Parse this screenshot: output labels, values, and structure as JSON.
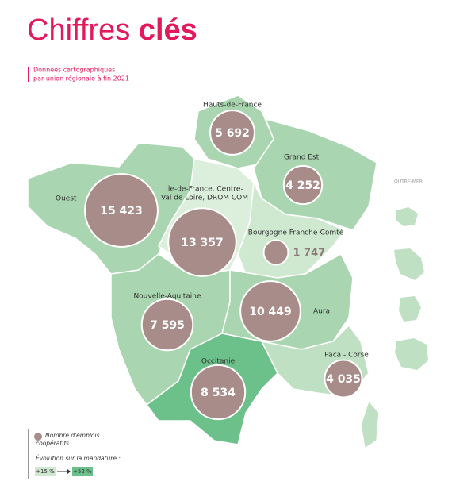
{
  "title": {
    "regular": "Chiffres",
    "bold": "clés"
  },
  "subtitle": [
    "Données cartographiques",
    "par union régionale à fin 2021"
  ],
  "overseas_label": "OUTRE-MER",
  "bubble_color": "#a78c89",
  "regions": [
    {
      "name": [
        "Hauts-de-France"
      ],
      "value": 5692,
      "value_label": "5 692",
      "color": "#a9d6b0"
    },
    {
      "name": [
        "Grand Est"
      ],
      "value": 4252,
      "value_label": "4 252",
      "color": "#a9d6b0"
    },
    {
      "name": [
        "Ouest"
      ],
      "value": 15423,
      "value_label": "15 423",
      "color": "#a9d6b0"
    },
    {
      "name": [
        "Ile-de-France, Centre-",
        "Val de Loire, DROM COM"
      ],
      "value": 13357,
      "value_label": "13 357",
      "color": "#dcefdc"
    },
    {
      "name": [
        "Bourgogne Franche-Comté"
      ],
      "value": 1747,
      "value_label": "1 747",
      "color": "#cfe8d0"
    },
    {
      "name": [
        "Nouvelle-Aquitaine"
      ],
      "value": 7595,
      "value_label": "7 595",
      "color": "#a9d6b0"
    },
    {
      "name": [
        "Aura"
      ],
      "value": 10449,
      "value_label": "10 449",
      "color": "#a9d6b0"
    },
    {
      "name": [
        "Paca - Corse"
      ],
      "value": 4035,
      "value_label": "4 035",
      "color": "#bfe0c2"
    },
    {
      "name": [
        "Occitanie"
      ],
      "value": 8534,
      "value_label": "8 534",
      "color": "#6cc08a"
    }
  ],
  "legend": {
    "size_label": [
      "Nombre d'emplois",
      "coopératifs"
    ],
    "growth_title": "Évolution sur la mandature :",
    "growth_low": {
      "label": "+15 %",
      "color": "#cfe8d0"
    },
    "growth_high": {
      "label": "+52 %",
      "color": "#6cc08a"
    }
  }
}
